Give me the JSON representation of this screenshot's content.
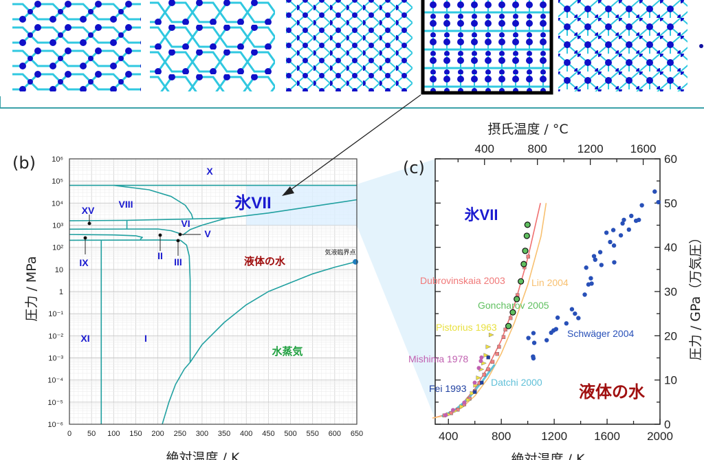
{
  "top_strip": {
    "images": [
      "structure-1",
      "structure-2",
      "structure-3",
      "structure-4-ice-VII",
      "structure-5"
    ],
    "highlighted_index": 3,
    "border_color": "#3aa0a8"
  },
  "panel_b": {
    "label": "(b)",
    "xlabel": "絶対温度 / K",
    "ylabel": "圧力 / MPa",
    "x_ticks": [
      "0",
      "50",
      "100",
      "150",
      "200",
      "250",
      "300",
      "350",
      "400",
      "450",
      "500",
      "550",
      "600",
      "650"
    ],
    "y_ticks": [
      "10⁶",
      "10⁵",
      "10⁴",
      "10³",
      "10²",
      "10",
      "1",
      "10⁻¹",
      "10⁻²",
      "10⁻³",
      "10⁻⁴",
      "10⁻⁵",
      "10⁻⁶"
    ],
    "phase_labels": {
      "X": "X",
      "VII": "氷VII",
      "VIII": "VIII",
      "XV": "XV",
      "VI": "VI",
      "V": "V",
      "II": "II",
      "III": "III",
      "IX": "IX",
      "XI": "XI",
      "I": "I",
      "liquid": "液体の水",
      "vapor": "水蒸気",
      "critical": "気液臨界点"
    },
    "colors": {
      "line": "#20a0a0",
      "phase": "#1a1ad0",
      "liquid": "#a01010",
      "vapor": "#20a040",
      "critical": "#1f7fc0",
      "shade": "#dcefff"
    }
  },
  "panel_c": {
    "label": "(c)",
    "top_label": "摂氏温度 / °C",
    "xlabel": "絶対温度 / K",
    "ylabel_right": "圧力 / GPa（万気圧）",
    "x_ticks": [
      "400",
      "800",
      "1200",
      "1600",
      "2000"
    ],
    "top_ticks": [
      "400",
      "800",
      "1200",
      "1600"
    ],
    "y_ticks": [
      "0",
      "10",
      "20",
      "30",
      "40",
      "50",
      "60"
    ],
    "region_ice": "氷VII",
    "region_liquid": "液体の水",
    "refs": {
      "dubrovinskaia": "Dubrovinskaia 2003",
      "lin": "Lin 2004",
      "goncharov": "Goncharov 2005",
      "pistorius": "Pistorius 1963",
      "schwager": "Schwäger 2004",
      "mishima": "Mishima 1978",
      "datchi": "Datchi 2000",
      "fei": "Fei 1993"
    }
  },
  "chart_data": [
    {
      "type": "line",
      "panel": "b",
      "xlabel": "絶対温度 / K",
      "ylabel": "圧力 / MPa",
      "xlim": [
        0,
        650
      ],
      "ylim": [
        1e-06,
        1000000.0
      ],
      "yscale": "log",
      "grid": true,
      "critical_point": {
        "T": 647,
        "P": 22
      },
      "boundaries_logP": [
        {
          "id": "X-VII",
          "pts": [
            [
              0,
              4.8
            ],
            [
              650,
              4.8
            ]
          ]
        },
        {
          "id": "VIII-VII",
          "pts": [
            [
              100,
              4.8
            ],
            [
              180,
              4.6
            ],
            [
              230,
              4.3
            ],
            [
              262,
              3.9
            ],
            [
              276,
              3.5
            ],
            [
              279,
              3.3
            ]
          ]
        },
        {
          "id": "VII-liquid",
          "pts": [
            [
              355,
              3.32
            ],
            [
              450,
              3.55
            ],
            [
              550,
              3.85
            ],
            [
              650,
              4.15
            ]
          ]
        },
        {
          "id": "VI-VII",
          "pts": [
            [
              0,
              3.2
            ],
            [
              130,
              3.22
            ],
            [
              250,
              3.27
            ],
            [
              355,
              3.32
            ]
          ]
        },
        {
          "id": "XV-VI",
          "pts": [
            [
              130,
              3.2
            ],
            [
              130,
              2.82
            ]
          ]
        },
        {
          "id": "VI-V",
          "pts": [
            [
              0,
              2.82
            ],
            [
              200,
              2.83
            ],
            [
              230,
              2.75
            ],
            [
              250,
              2.62
            ]
          ]
        },
        {
          "id": "VI-liquid",
          "pts": [
            [
              256,
              2.55
            ],
            [
              273,
              2.8
            ],
            [
              300,
              3.0
            ],
            [
              355,
              3.32
            ]
          ]
        },
        {
          "id": "IX-II",
          "pts": [
            [
              0,
              2.58
            ],
            [
              100,
              2.56
            ],
            [
              150,
              2.52
            ],
            [
              165,
              2.45
            ],
            [
              160,
              2.36
            ]
          ]
        },
        {
          "id": "II-I",
          "pts": [
            [
              0,
              2.32
            ],
            [
              200,
              2.33
            ],
            [
              251,
              2.32
            ]
          ]
        },
        {
          "id": "XI-I",
          "pts": [
            [
              72,
              2.32
            ],
            [
              72,
              -6
            ]
          ]
        },
        {
          "id": "I-liquid",
          "pts": [
            [
              251,
              2.32
            ],
            [
              265,
              2.1
            ],
            [
              271,
              1.6
            ],
            [
              273,
              0.5
            ],
            [
              273,
              -3.2
            ]
          ]
        },
        {
          "id": "sublimation",
          "pts": [
            [
              210,
              -6
            ],
            [
              225,
              -5
            ],
            [
              240,
              -4.2
            ],
            [
              260,
              -3.5
            ],
            [
              273,
              -3.2
            ]
          ]
        },
        {
          "id": "vaporization",
          "pts": [
            [
              273,
              -3.2
            ],
            [
              300,
              -2.4
            ],
            [
              350,
              -1.4
            ],
            [
              400,
              -0.6
            ],
            [
              450,
              0.0
            ],
            [
              500,
              0.4
            ],
            [
              550,
              0.8
            ],
            [
              600,
              1.1
            ],
            [
              647,
              1.34
            ]
          ]
        }
      ],
      "shaded_region": {
        "T": [
          400,
          650
        ],
        "logP": [
          3,
          4.8
        ]
      }
    },
    {
      "type": "scatter",
      "panel": "c",
      "xlabel": "絶対温度 / K",
      "ylabel": "圧力 / GPa（万気圧）",
      "xlim": [
        300,
        2000
      ],
      "ylim": [
        0,
        60
      ],
      "top_axis": "摂氏温度 / °C",
      "series": [
        {
          "name": "Dubrovinskaia 2003",
          "kind": "line",
          "color": "#f07070",
          "points": [
            [
              280,
              1.4
            ],
            [
              400,
              2.3
            ],
            [
              500,
              4.5
            ],
            [
              600,
              8
            ],
            [
              700,
              13
            ],
            [
              800,
              19
            ],
            [
              900,
              27
            ],
            [
              1000,
              37.5
            ],
            [
              1096,
              50
            ]
          ]
        },
        {
          "name": "Lin 2004",
          "kind": "line",
          "color": "#f8c070",
          "points": [
            [
              280,
              1.4
            ],
            [
              400,
              2.1
            ],
            [
              500,
              3.7
            ],
            [
              600,
              6.4
            ],
            [
              700,
              10.4
            ],
            [
              800,
              16
            ],
            [
              900,
              23
            ],
            [
              1000,
              31.5
            ],
            [
              1100,
              42.5
            ],
            [
              1139,
              50
            ]
          ]
        },
        {
          "name": "Datchi 2000",
          "kind": "line",
          "color": "#60c0d8",
          "points": [
            [
              350,
              1.8
            ],
            [
              450,
              3.2
            ],
            [
              550,
              5.8
            ],
            [
              650,
              9.5
            ],
            [
              750,
              13.5
            ]
          ]
        },
        {
          "name": "Dubrovinskaia 2003",
          "kind": "square",
          "color": "#f08080",
          "points": [
            [
              1003,
              37.9
            ],
            [
              975,
              35.5
            ],
            [
              922,
              29.2
            ],
            [
              870,
              24
            ],
            [
              831,
              21.4
            ],
            [
              817,
              19.7
            ],
            [
              783,
              17.5
            ],
            [
              769,
              15.9
            ],
            [
              734,
              14.1
            ],
            [
              701,
              12.4
            ],
            [
              670,
              11.2
            ],
            [
              635,
              9.3
            ],
            [
              600,
              7.5
            ],
            [
              560,
              5.8
            ],
            [
              520,
              4.5
            ],
            [
              470,
              3.3
            ],
            [
              420,
              2.5
            ],
            [
              370,
              2
            ]
          ]
        },
        {
          "name": "Goncharov 2005",
          "kind": "circle",
          "color": "#60c060",
          "points": [
            [
              998,
              45.1
            ],
            [
              993,
              42.6
            ],
            [
              981,
              39.2
            ],
            [
              970,
              36.2
            ],
            [
              948,
              32.3
            ],
            [
              917,
              28.3
            ],
            [
              887,
              25.3
            ],
            [
              854,
              22.2
            ]
          ]
        },
        {
          "name": "Pistorius 1963",
          "kind": "triangle",
          "color": "#f0e040",
          "points": [
            [
              722,
              20.2
            ],
            [
              699,
              17.5
            ],
            [
              683,
              15.6
            ],
            [
              666,
              13.8
            ],
            [
              647,
              12.4
            ],
            [
              626,
              10.5
            ],
            [
              605,
              8.8
            ],
            [
              580,
              7
            ],
            [
              550,
              5.5
            ],
            [
              500,
              4
            ],
            [
              450,
              3
            ],
            [
              400,
              2.2
            ]
          ]
        },
        {
          "name": "Mishima 1978",
          "kind": "circle",
          "color": "#c060b0",
          "points": [
            [
              650,
              15.1
            ],
            [
              645,
              14.3
            ],
            [
              630,
              12.7
            ],
            [
              599,
              9.4
            ],
            [
              520,
              4.9
            ],
            [
              435,
              3.2
            ],
            [
              380,
              2.1
            ]
          ]
        },
        {
          "name": "Fei 1993",
          "kind": "square",
          "color": "#2040a0",
          "points": [
            [
              701,
              15.1
            ],
            [
              652,
              9.4
            ],
            [
              600,
              7.3
            ]
          ]
        },
        {
          "name": "Schwäger 2004",
          "kind": "dot",
          "color": "#2850b8",
          "points": [
            [
              1960,
              52.6
            ],
            [
              1988,
              50.2
            ],
            [
              1863,
              49.5
            ],
            [
              1840,
              46.2
            ],
            [
              1819,
              46
            ],
            [
              1783,
              47.1
            ],
            [
              1765,
              44
            ],
            [
              1727,
              46.2
            ],
            [
              1717,
              45.4
            ],
            [
              1704,
              42.7
            ],
            [
              1647,
              43.9
            ],
            [
              1652,
              40.4
            ],
            [
              1623,
              41.2
            ],
            [
              1654,
              36.6
            ],
            [
              1595,
              43.3
            ],
            [
              1548,
              38.9
            ],
            [
              1557,
              36
            ],
            [
              1501,
              38
            ],
            [
              1510,
              37.2
            ],
            [
              1442,
              35.4
            ],
            [
              1477,
              33
            ],
            [
              1459,
              31.6
            ],
            [
              1483,
              31.8
            ],
            [
              1431,
              29.3
            ],
            [
              1334,
              26
            ],
            [
              1357,
              25
            ],
            [
              1383,
              24
            ],
            [
              1292,
              22.8
            ],
            [
              1226,
              24.1
            ],
            [
              1214,
              21.5
            ],
            [
              1195,
              21.2
            ],
            [
              1177,
              20.7
            ],
            [
              1143,
              19
            ],
            [
              1005,
              19.5
            ],
            [
              1043,
              20.6
            ],
            [
              1049,
              18.4
            ],
            [
              1040,
              15.3
            ],
            [
              1043,
              14.9
            ]
          ]
        }
      ]
    }
  ]
}
